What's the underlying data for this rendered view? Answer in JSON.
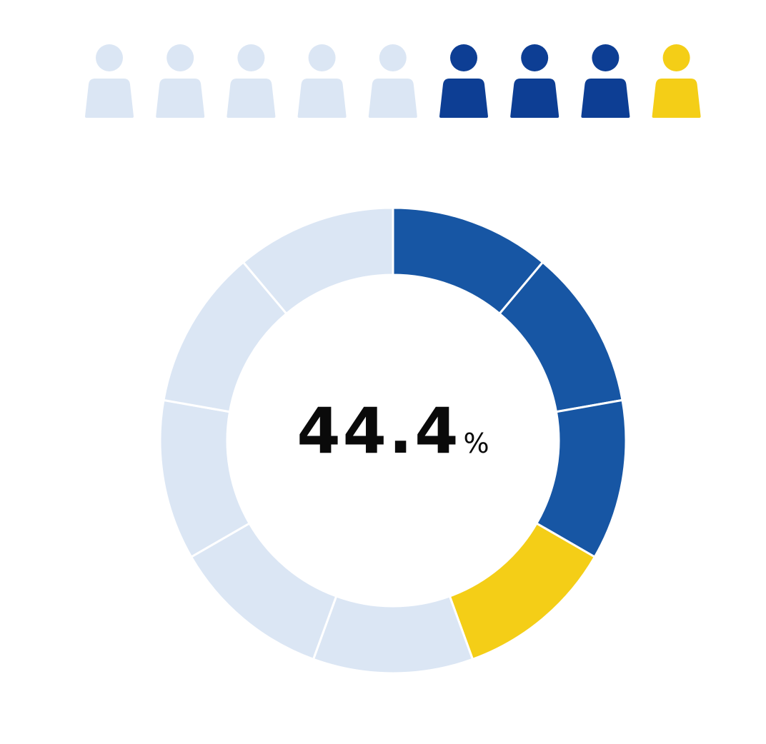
{
  "chart_data": {
    "type": "pie",
    "style": "donut",
    "segments": 9,
    "values": [
      1,
      1,
      1,
      1,
      1,
      1,
      1,
      1,
      1
    ],
    "highlighted_dark": 3,
    "highlighted_accent": 1,
    "percentage_value": "44.4",
    "percentage_unit": "%",
    "colors": {
      "light": "#dbe6f4",
      "dark_icon": "#0d3e94",
      "dark_ring": "#1756a4",
      "accent": "#f4ce17"
    }
  },
  "people": {
    "count": 9,
    "states": [
      "light",
      "light",
      "light",
      "light",
      "light",
      "dark",
      "dark",
      "dark",
      "accent"
    ]
  }
}
